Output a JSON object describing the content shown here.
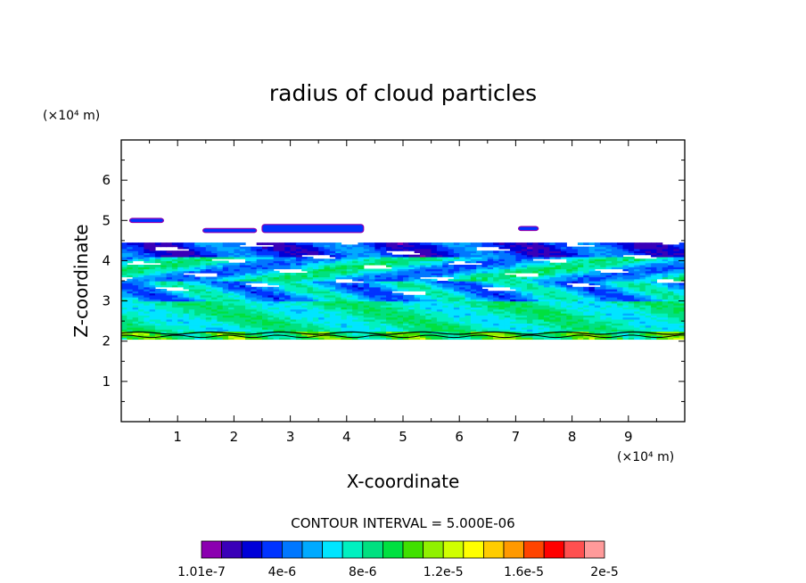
{
  "chart_data": {
    "type": "heatmap",
    "title": "radius of cloud particles",
    "xlabel": "X-coordinate",
    "ylabel": "Z-coordinate",
    "x_unit_label": "(×10⁴ m)",
    "y_unit_label": "(×10⁴ m)",
    "xlim": [
      0,
      10
    ],
    "ylim": [
      0,
      7
    ],
    "x_ticks": [
      "1",
      "2",
      "3",
      "4",
      "5",
      "6",
      "7",
      "8",
      "9"
    ],
    "y_ticks": [
      "1",
      "2",
      "3",
      "4",
      "5",
      "6"
    ],
    "grid": false,
    "cloud_base": 2.05,
    "cloud_top": 4.45,
    "contour_interval_text": "CONTOUR INTERVAL = 5.000E-06",
    "colorbar": {
      "colors": [
        "#8b00b0",
        "#3a00b8",
        "#0000d8",
        "#0033ff",
        "#0077ff",
        "#00aaff",
        "#00e5ff",
        "#00f0c0",
        "#00e080",
        "#00e040",
        "#40e000",
        "#90f000",
        "#d0ff00",
        "#ffff00",
        "#ffcc00",
        "#ff9900",
        "#ff4400",
        "#ff0000",
        "#ff5050",
        "#ff9a9a"
      ],
      "labels": [
        "1.01e-7",
        "4e-6",
        "8e-6",
        "1.2e-5",
        "1.6e-5",
        "2e-5"
      ]
    },
    "isolated_patches": [
      {
        "x": [
          0.15,
          0.75
        ],
        "z": [
          4.95,
          5.05
        ]
      },
      {
        "x": [
          1.45,
          2.4
        ],
        "z": [
          4.7,
          4.8
        ]
      },
      {
        "x": [
          2.5,
          4.3
        ],
        "z": [
          4.7,
          4.9
        ]
      },
      {
        "x": [
          7.05,
          7.4
        ],
        "z": [
          4.75,
          4.85
        ]
      }
    ]
  }
}
